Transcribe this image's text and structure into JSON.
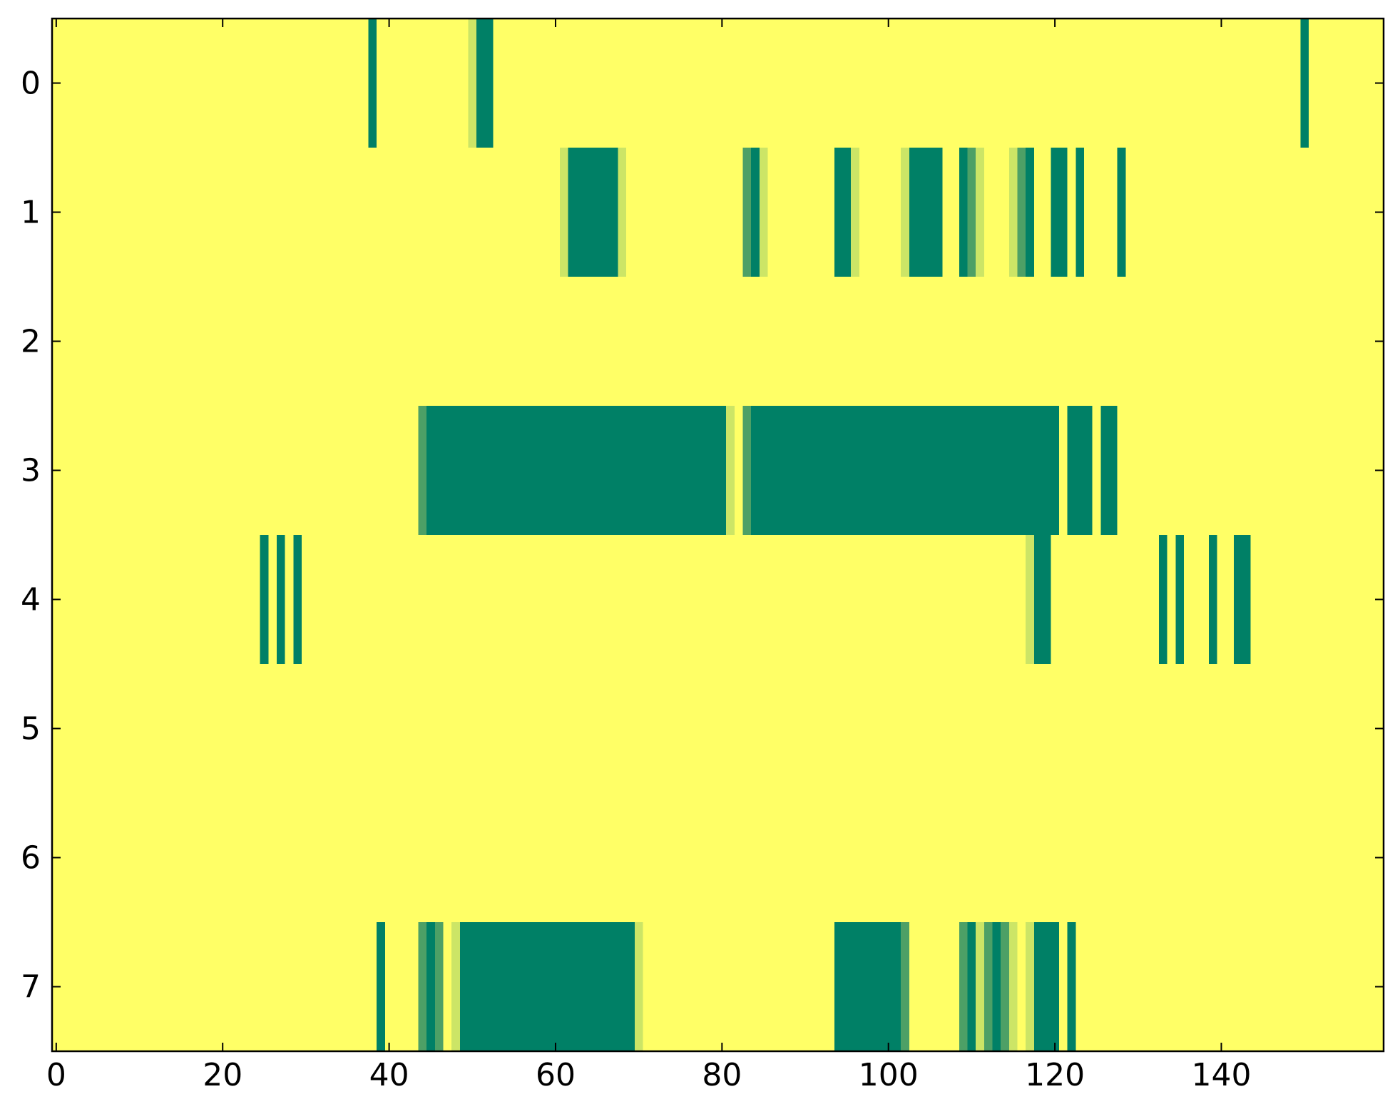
{
  "chart_data": {
    "type": "heatmap",
    "title": "",
    "xlabel": "",
    "ylabel": "",
    "xlim": [
      -0.5,
      159.5
    ],
    "ylim": [
      7.5,
      -0.5
    ],
    "x_ticks": [
      0,
      20,
      40,
      60,
      80,
      100,
      120,
      140
    ],
    "y_ticks": [
      0,
      1,
      2,
      3,
      4,
      5,
      6,
      7
    ],
    "grid": false,
    "colormap": "summer_r",
    "colors": {
      "zero": "#ffff66",
      "light": "#cce566",
      "medium": "#4da066",
      "high": "#008066"
    },
    "rows": [
      {
        "row": 0,
        "segments": [
          {
            "x0": 37.5,
            "x1": 38.5,
            "value": 1.0
          },
          {
            "x0": 49.5,
            "x1": 50.5,
            "value": 0.2
          },
          {
            "x0": 50.5,
            "x1": 52.5,
            "value": 1.0
          },
          {
            "x0": 149.5,
            "x1": 150.5,
            "value": 1.0
          }
        ]
      },
      {
        "row": 1,
        "segments": [
          {
            "x0": 60.5,
            "x1": 61.5,
            "value": 0.4
          },
          {
            "x0": 61.5,
            "x1": 67.5,
            "value": 1.0
          },
          {
            "x0": 67.5,
            "x1": 68.5,
            "value": 0.2
          },
          {
            "x0": 82.5,
            "x1": 83.5,
            "value": 0.7
          },
          {
            "x0": 83.5,
            "x1": 84.5,
            "value": 1.0
          },
          {
            "x0": 84.5,
            "x1": 85.5,
            "value": 0.4
          },
          {
            "x0": 93.5,
            "x1": 95.5,
            "value": 1.0
          },
          {
            "x0": 95.5,
            "x1": 96.5,
            "value": 0.3
          },
          {
            "x0": 101.5,
            "x1": 102.5,
            "value": 0.5
          },
          {
            "x0": 102.5,
            "x1": 106.5,
            "value": 1.0
          },
          {
            "x0": 108.5,
            "x1": 109.5,
            "value": 1.0
          },
          {
            "x0": 109.5,
            "x1": 110.5,
            "value": 0.7
          },
          {
            "x0": 110.5,
            "x1": 111.5,
            "value": 0.4
          },
          {
            "x0": 114.5,
            "x1": 115.5,
            "value": 0.4
          },
          {
            "x0": 115.5,
            "x1": 116.5,
            "value": 0.7
          },
          {
            "x0": 116.5,
            "x1": 117.5,
            "value": 1.0
          },
          {
            "x0": 119.5,
            "x1": 121.5,
            "value": 1.0
          },
          {
            "x0": 122.5,
            "x1": 123.5,
            "value": 1.0
          },
          {
            "x0": 127.5,
            "x1": 128.5,
            "value": 1.0
          }
        ]
      },
      {
        "row": 2,
        "segments": []
      },
      {
        "row": 3,
        "segments": [
          {
            "x0": 43.5,
            "x1": 44.5,
            "value": 0.7
          },
          {
            "x0": 44.5,
            "x1": 80.5,
            "value": 1.0
          },
          {
            "x0": 80.5,
            "x1": 81.5,
            "value": 0.1
          },
          {
            "x0": 82.5,
            "x1": 83.5,
            "value": 0.8
          },
          {
            "x0": 83.5,
            "x1": 120.5,
            "value": 1.0
          },
          {
            "x0": 121.5,
            "x1": 124.5,
            "value": 1.0
          },
          {
            "x0": 125.5,
            "x1": 127.5,
            "value": 1.0
          }
        ]
      },
      {
        "row": 4,
        "segments": [
          {
            "x0": 24.5,
            "x1": 25.5,
            "value": 1.0
          },
          {
            "x0": 26.5,
            "x1": 27.5,
            "value": 1.0
          },
          {
            "x0": 28.5,
            "x1": 29.5,
            "value": 1.0
          },
          {
            "x0": 116.5,
            "x1": 117.5,
            "value": 0.3
          },
          {
            "x0": 117.5,
            "x1": 119.5,
            "value": 1.0
          },
          {
            "x0": 132.5,
            "x1": 133.5,
            "value": 1.0
          },
          {
            "x0": 134.5,
            "x1": 135.5,
            "value": 1.0
          },
          {
            "x0": 138.5,
            "x1": 139.5,
            "value": 1.0
          },
          {
            "x0": 141.5,
            "x1": 143.5,
            "value": 1.0
          }
        ]
      },
      {
        "row": 5,
        "segments": []
      },
      {
        "row": 6,
        "segments": []
      },
      {
        "row": 7,
        "segments": [
          {
            "x0": 38.5,
            "x1": 39.5,
            "value": 1.0
          },
          {
            "x0": 43.5,
            "x1": 44.5,
            "value": 0.7
          },
          {
            "x0": 44.5,
            "x1": 45.5,
            "value": 1.0
          },
          {
            "x0": 45.5,
            "x1": 46.5,
            "value": 0.7
          },
          {
            "x0": 47.5,
            "x1": 48.5,
            "value": 0.5
          },
          {
            "x0": 48.5,
            "x1": 69.5,
            "value": 1.0
          },
          {
            "x0": 69.5,
            "x1": 70.5,
            "value": 0.3
          },
          {
            "x0": 93.5,
            "x1": 101.5,
            "value": 1.0
          },
          {
            "x0": 101.5,
            "x1": 102.5,
            "value": 0.7
          },
          {
            "x0": 108.5,
            "x1": 109.5,
            "value": 0.7
          },
          {
            "x0": 109.5,
            "x1": 110.5,
            "value": 1.0
          },
          {
            "x0": 110.5,
            "x1": 111.5,
            "value": 0.3
          },
          {
            "x0": 111.5,
            "x1": 112.5,
            "value": 0.6
          },
          {
            "x0": 112.5,
            "x1": 113.5,
            "value": 1.0
          },
          {
            "x0": 113.5,
            "x1": 114.5,
            "value": 0.7
          },
          {
            "x0": 114.5,
            "x1": 115.5,
            "value": 0.3
          },
          {
            "x0": 116.5,
            "x1": 117.5,
            "value": 0.4
          },
          {
            "x0": 117.5,
            "x1": 120.5,
            "value": 1.0
          },
          {
            "x0": 121.5,
            "x1": 122.5,
            "value": 1.0
          }
        ]
      }
    ]
  }
}
